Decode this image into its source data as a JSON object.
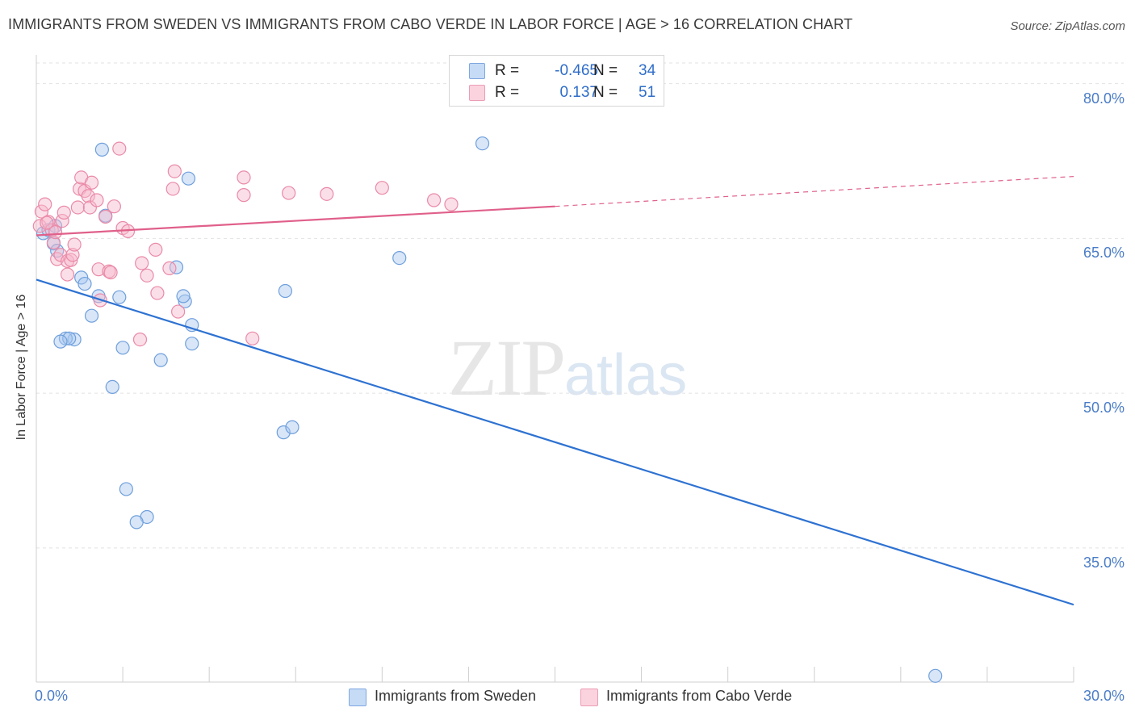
{
  "title": "IMMIGRANTS FROM SWEDEN VS IMMIGRANTS FROM CABO VERDE IN LABOR FORCE | AGE > 16 CORRELATION CHART",
  "source": "Source: ZipAtlas.com",
  "legend": {
    "rows": [
      {
        "r_label": "R =",
        "r_value": "-0.465",
        "n_label": "N =",
        "n_value": "34",
        "color": "#a9c8f0"
      },
      {
        "r_label": "R =",
        "r_value": "0.137",
        "n_label": "N =",
        "n_value": "51",
        "color": "#f6b8cb"
      }
    ]
  },
  "bottom_legend": [
    {
      "label": "Immigrants from Sweden",
      "color": "#a9c8f0"
    },
    {
      "label": "Immigrants from Cabo Verde",
      "color": "#f6b8cb"
    }
  ],
  "watermark": {
    "zip": "ZIP",
    "atlas": "atlas"
  },
  "chart_data": {
    "type": "scatter",
    "ylabel": "In Labor Force | Age > 16",
    "xlabel": "",
    "xlim": [
      0,
      30
    ],
    "ylim": [
      22,
      82
    ],
    "x_tick_labels": [
      {
        "value": 0,
        "label": "0.0%"
      },
      {
        "value": 30,
        "label": "30.0%"
      }
    ],
    "y_tick_labels": [
      {
        "value": 80,
        "label": "80.0%"
      },
      {
        "value": 65,
        "label": "65.0%"
      },
      {
        "value": 50,
        "label": "50.0%"
      },
      {
        "value": 35,
        "label": "35.0%"
      }
    ],
    "grid": true,
    "series": [
      {
        "name": "Immigrants from Sweden",
        "color": "#a9c8f0",
        "stroke": "#6f9fdc",
        "trend_color": "#2e72d2",
        "trend": {
          "x0": 0,
          "y0": 61.0,
          "x1": 30,
          "y1": 29.5
        },
        "points": [
          [
            0.2,
            65.5
          ],
          [
            0.35,
            65.8
          ],
          [
            0.5,
            64.5
          ],
          [
            0.6,
            63.8
          ],
          [
            0.55,
            66.2
          ],
          [
            1.3,
            61.2
          ],
          [
            1.4,
            60.6
          ],
          [
            1.6,
            57.5
          ],
          [
            1.8,
            59.4
          ],
          [
            2.0,
            67.2
          ],
          [
            2.4,
            59.3
          ],
          [
            2.2,
            50.6
          ],
          [
            2.5,
            54.4
          ],
          [
            1.9,
            73.6
          ],
          [
            1.1,
            55.2
          ],
          [
            0.85,
            55.3
          ],
          [
            0.95,
            55.3
          ],
          [
            0.7,
            55.0
          ],
          [
            4.3,
            58.9
          ],
          [
            4.05,
            62.2
          ],
          [
            4.25,
            59.4
          ],
          [
            4.5,
            56.6
          ],
          [
            3.6,
            53.2
          ],
          [
            4.5,
            54.8
          ],
          [
            7.2,
            59.9
          ],
          [
            7.15,
            46.2
          ],
          [
            7.4,
            46.7
          ],
          [
            2.6,
            40.7
          ],
          [
            3.2,
            38.0
          ],
          [
            2.9,
            37.5
          ],
          [
            4.4,
            70.8
          ],
          [
            10.5,
            63.1
          ],
          [
            12.9,
            74.2
          ],
          [
            26.0,
            22.6
          ]
        ]
      },
      {
        "name": "Immigrants from Cabo Verde",
        "color": "#f6b8cb",
        "stroke": "#ea8aa8",
        "trend_color": "#e0608a",
        "trend": {
          "x0": 0,
          "y0": 65.3,
          "x1": 15,
          "y1": 68.1
        },
        "trend_extension": {
          "x0": 15,
          "y0": 68.1,
          "x1": 30,
          "y1": 71.0
        },
        "points": [
          [
            0.1,
            66.2
          ],
          [
            0.15,
            67.6
          ],
          [
            0.25,
            68.3
          ],
          [
            0.35,
            66.6
          ],
          [
            0.45,
            65.8
          ],
          [
            0.5,
            64.6
          ],
          [
            0.6,
            63.0
          ],
          [
            0.7,
            63.4
          ],
          [
            0.75,
            66.7
          ],
          [
            0.8,
            67.5
          ],
          [
            0.9,
            62.8
          ],
          [
            0.9,
            61.5
          ],
          [
            1.0,
            62.9
          ],
          [
            1.05,
            63.4
          ],
          [
            1.1,
            64.4
          ],
          [
            1.2,
            68.0
          ],
          [
            1.25,
            69.8
          ],
          [
            1.3,
            70.9
          ],
          [
            1.4,
            69.6
          ],
          [
            1.5,
            69.1
          ],
          [
            1.55,
            68.0
          ],
          [
            1.6,
            70.4
          ],
          [
            1.75,
            68.7
          ],
          [
            1.8,
            62.0
          ],
          [
            1.85,
            59.0
          ],
          [
            2.0,
            67.1
          ],
          [
            2.1,
            61.8
          ],
          [
            2.15,
            61.7
          ],
          [
            2.25,
            68.1
          ],
          [
            2.4,
            73.7
          ],
          [
            2.5,
            66.0
          ],
          [
            2.65,
            65.7
          ],
          [
            3.0,
            55.2
          ],
          [
            3.05,
            62.6
          ],
          [
            3.2,
            61.4
          ],
          [
            3.45,
            63.9
          ],
          [
            3.5,
            59.7
          ],
          [
            3.85,
            62.1
          ],
          [
            3.95,
            69.8
          ],
          [
            4.0,
            71.5
          ],
          [
            4.1,
            57.9
          ],
          [
            6.0,
            70.9
          ],
          [
            6.0,
            69.2
          ],
          [
            6.25,
            55.3
          ],
          [
            7.3,
            69.4
          ],
          [
            8.4,
            69.3
          ],
          [
            10.0,
            69.9
          ],
          [
            11.5,
            68.7
          ],
          [
            12.0,
            68.3
          ],
          [
            0.3,
            66.5
          ],
          [
            0.55,
            65.6
          ]
        ]
      }
    ]
  }
}
